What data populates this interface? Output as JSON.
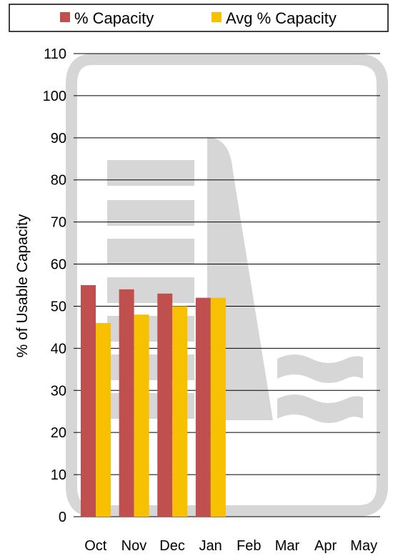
{
  "chart_data": {
    "type": "bar",
    "categories": [
      "Oct",
      "Nov",
      "Dec",
      "Jan",
      "Feb",
      "Mar",
      "Apr",
      "May"
    ],
    "series": [
      {
        "name": "% Capacity",
        "color": "#c0504d",
        "values": [
          55,
          54,
          53,
          52,
          null,
          null,
          null,
          null
        ]
      },
      {
        "name": "Avg % Capacity",
        "color": "#f7c000",
        "values": [
          46,
          48,
          50,
          52,
          null,
          null,
          null,
          null
        ]
      }
    ],
    "ylabel": "% of Usable Capacity",
    "xlabel": "",
    "ylim": [
      0,
      110
    ],
    "yticks": [
      0,
      10,
      20,
      30,
      40,
      50,
      60,
      70,
      80,
      90,
      100,
      110
    ],
    "grid": true,
    "legend": "top"
  }
}
